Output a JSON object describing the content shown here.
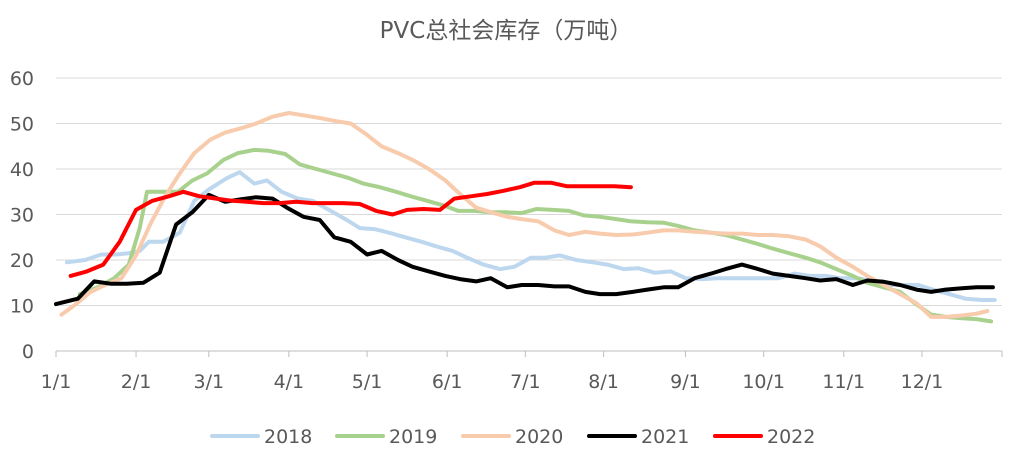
{
  "chart_data": {
    "type": "line",
    "title": "PVC总社会库存（万吨）",
    "xlabel": "",
    "ylabel": "",
    "ylim": [
      0,
      60
    ],
    "y_ticks": [
      0,
      10,
      20,
      30,
      40,
      50,
      60
    ],
    "x_unit": "week",
    "xlim": [
      0,
      52
    ],
    "x_ticks": [
      {
        "label": "1/1",
        "x": 0
      },
      {
        "label": "2/1",
        "x": 4.4
      },
      {
        "label": "3/1",
        "x": 8.4
      },
      {
        "label": "4/1",
        "x": 12.8
      },
      {
        "label": "5/1",
        "x": 17.1
      },
      {
        "label": "6/1",
        "x": 21.5
      },
      {
        "label": "7/1",
        "x": 25.8
      },
      {
        "label": "8/1",
        "x": 30.1
      },
      {
        "label": "9/1",
        "x": 34.6
      },
      {
        "label": "10/1",
        "x": 38.9
      },
      {
        "label": "11/1",
        "x": 43.3
      },
      {
        "label": "12/1",
        "x": 47.6
      }
    ],
    "grid": "horizontal",
    "legend_position": "bottom",
    "series": [
      {
        "name": "2018",
        "color": "#BDD7EE",
        "points": [
          [
            0.6,
            19.5
          ],
          [
            1.6,
            20
          ],
          [
            2.5,
            21.2
          ],
          [
            3.3,
            21.2
          ],
          [
            4.0,
            21.5
          ],
          [
            4.6,
            22
          ],
          [
            5.1,
            24
          ],
          [
            5.9,
            24
          ],
          [
            6.8,
            26
          ],
          [
            7.6,
            33
          ],
          [
            8.4,
            35.5
          ],
          [
            9.4,
            38
          ],
          [
            10.1,
            39.3
          ],
          [
            10.9,
            36.8
          ],
          [
            11.6,
            37.5
          ],
          [
            12.4,
            35
          ],
          [
            13.3,
            33.5
          ],
          [
            14.1,
            33
          ],
          [
            15.0,
            31
          ],
          [
            15.9,
            29
          ],
          [
            16.7,
            27
          ],
          [
            17.5,
            26.8
          ],
          [
            18.3,
            26
          ],
          [
            19.2,
            25
          ],
          [
            20.1,
            24
          ],
          [
            20.9,
            23
          ],
          [
            21.8,
            22
          ],
          [
            22.6,
            20.5
          ],
          [
            23.5,
            19
          ],
          [
            24.4,
            18
          ],
          [
            25.2,
            18.5
          ],
          [
            26.1,
            20.5
          ],
          [
            26.9,
            20.5
          ],
          [
            27.7,
            21
          ],
          [
            28.6,
            20
          ],
          [
            29.5,
            19.5
          ],
          [
            30.3,
            19
          ],
          [
            31.2,
            18
          ],
          [
            32.0,
            18.2
          ],
          [
            32.9,
            17.2
          ],
          [
            33.8,
            17.5
          ],
          [
            34.6,
            16
          ],
          [
            35.5,
            15.8
          ],
          [
            36.4,
            16
          ],
          [
            37.3,
            16
          ],
          [
            38.1,
            16
          ],
          [
            38.9,
            16
          ],
          [
            39.7,
            16
          ],
          [
            40.6,
            17
          ],
          [
            41.4,
            16.5
          ],
          [
            42.3,
            16.5
          ],
          [
            43.1,
            16
          ],
          [
            44.0,
            16
          ],
          [
            44.8,
            15.5
          ],
          [
            45.7,
            14.5
          ],
          [
            46.5,
            14.5
          ],
          [
            47.4,
            14.5
          ],
          [
            48.2,
            13.5
          ],
          [
            49.1,
            12.5
          ],
          [
            50.0,
            11.5
          ],
          [
            50.9,
            11.2
          ],
          [
            51.6,
            11.2
          ]
        ]
      },
      {
        "name": "2019",
        "color": "#A9D18E",
        "points": [
          [
            1.3,
            12.5
          ],
          [
            2.3,
            14
          ],
          [
            3.2,
            16
          ],
          [
            4.0,
            19
          ],
          [
            4.6,
            27
          ],
          [
            5.0,
            35
          ],
          [
            5.8,
            35
          ],
          [
            6.7,
            35
          ],
          [
            7.5,
            37.5
          ],
          [
            8.3,
            39
          ],
          [
            9.2,
            42
          ],
          [
            10.0,
            43.5
          ],
          [
            10.9,
            44.2
          ],
          [
            11.7,
            44
          ],
          [
            12.6,
            43.3
          ],
          [
            13.4,
            41
          ],
          [
            14.3,
            40
          ],
          [
            15.2,
            39
          ],
          [
            16.1,
            38
          ],
          [
            16.9,
            36.8
          ],
          [
            17.8,
            36
          ],
          [
            18.7,
            35
          ],
          [
            19.5,
            34
          ],
          [
            20.4,
            33
          ],
          [
            21.3,
            32
          ],
          [
            22.1,
            30.8
          ],
          [
            23.0,
            30.8
          ],
          [
            23.9,
            30.5
          ],
          [
            24.7,
            30.5
          ],
          [
            25.6,
            30.3
          ],
          [
            26.4,
            31.2
          ],
          [
            27.3,
            31
          ],
          [
            28.2,
            30.8
          ],
          [
            29.0,
            29.8
          ],
          [
            29.9,
            29.5
          ],
          [
            30.8,
            29
          ],
          [
            31.6,
            28.5
          ],
          [
            32.5,
            28.3
          ],
          [
            33.4,
            28.2
          ],
          [
            34.2,
            27.5
          ],
          [
            35.1,
            26.5
          ],
          [
            36.0,
            26
          ],
          [
            36.8,
            25.5
          ],
          [
            37.7,
            24.5
          ],
          [
            38.6,
            23.5
          ],
          [
            39.4,
            22.5
          ],
          [
            40.3,
            21.5
          ],
          [
            41.2,
            20.5
          ],
          [
            42.0,
            19.5
          ],
          [
            42.9,
            18
          ],
          [
            43.8,
            16.5
          ],
          [
            44.6,
            15
          ],
          [
            45.5,
            14
          ],
          [
            46.4,
            13
          ],
          [
            47.2,
            10.5
          ],
          [
            48.1,
            8
          ],
          [
            48.9,
            7.5
          ],
          [
            49.8,
            7.2
          ],
          [
            50.6,
            7
          ],
          [
            51.4,
            6.5
          ]
        ]
      },
      {
        "name": "2020",
        "color": "#F8CBAD",
        "points": [
          [
            0.3,
            8
          ],
          [
            1.0,
            10
          ],
          [
            1.9,
            13
          ],
          [
            2.7,
            14.5
          ],
          [
            3.6,
            16
          ],
          [
            4.4,
            21
          ],
          [
            5.2,
            28
          ],
          [
            6.0,
            34
          ],
          [
            6.8,
            39
          ],
          [
            7.6,
            43.5
          ],
          [
            8.5,
            46.5
          ],
          [
            9.3,
            48
          ],
          [
            10.2,
            49
          ],
          [
            11.0,
            50
          ],
          [
            11.9,
            51.5
          ],
          [
            12.8,
            52.3
          ],
          [
            13.6,
            51.8
          ],
          [
            14.5,
            51.2
          ],
          [
            15.4,
            50.5
          ],
          [
            16.2,
            50
          ],
          [
            17.1,
            47.5
          ],
          [
            17.9,
            45
          ],
          [
            18.8,
            43.5
          ],
          [
            19.6,
            42
          ],
          [
            20.5,
            40
          ],
          [
            21.4,
            37.5
          ],
          [
            22.2,
            34.5
          ],
          [
            23.1,
            31.5
          ],
          [
            23.9,
            30.5
          ],
          [
            24.8,
            29.5
          ],
          [
            25.6,
            29
          ],
          [
            26.5,
            28.5
          ],
          [
            27.4,
            26.5
          ],
          [
            28.2,
            25.5
          ],
          [
            29.1,
            26.2
          ],
          [
            29.9,
            25.8
          ],
          [
            30.8,
            25.5
          ],
          [
            31.7,
            25.6
          ],
          [
            32.5,
            26
          ],
          [
            33.4,
            26.5
          ],
          [
            34.2,
            26.5
          ],
          [
            35.1,
            26.2
          ],
          [
            36.0,
            26
          ],
          [
            36.8,
            25.8
          ],
          [
            37.7,
            25.8
          ],
          [
            38.6,
            25.5
          ],
          [
            39.4,
            25.5
          ],
          [
            40.3,
            25.2
          ],
          [
            41.2,
            24.5
          ],
          [
            42.0,
            23
          ],
          [
            42.9,
            20.5
          ],
          [
            43.8,
            18.5
          ],
          [
            44.6,
            16.5
          ],
          [
            45.5,
            14.5
          ],
          [
            46.4,
            12.5
          ],
          [
            47.3,
            10.5
          ],
          [
            48.1,
            7.5
          ],
          [
            48.9,
            7.5
          ],
          [
            49.8,
            7.8
          ],
          [
            50.6,
            8.2
          ],
          [
            51.2,
            8.8
          ]
        ]
      },
      {
        "name": "2021",
        "color": "#000000",
        "points": [
          [
            0,
            10.3
          ],
          [
            1.2,
            11.5
          ],
          [
            2.1,
            15.3
          ],
          [
            3.0,
            14.8
          ],
          [
            3.9,
            14.8
          ],
          [
            4.8,
            15
          ],
          [
            5.7,
            17.2
          ],
          [
            6.6,
            27.8
          ],
          [
            7.5,
            30.5
          ],
          [
            8.4,
            34.3
          ],
          [
            9.3,
            32.8
          ],
          [
            10.1,
            33.3
          ],
          [
            11.0,
            33.8
          ],
          [
            11.9,
            33.5
          ],
          [
            12.7,
            31.5
          ],
          [
            13.6,
            29.5
          ],
          [
            14.5,
            28.8
          ],
          [
            15.3,
            25
          ],
          [
            16.2,
            24
          ],
          [
            17.1,
            21.2
          ],
          [
            17.9,
            22
          ],
          [
            18.8,
            20
          ],
          [
            19.6,
            18.5
          ],
          [
            20.5,
            17.5
          ],
          [
            21.4,
            16.5
          ],
          [
            22.2,
            15.8
          ],
          [
            23.1,
            15.3
          ],
          [
            23.9,
            16
          ],
          [
            24.8,
            14
          ],
          [
            25.6,
            14.5
          ],
          [
            26.5,
            14.5
          ],
          [
            27.4,
            14.2
          ],
          [
            28.2,
            14.2
          ],
          [
            29.1,
            13
          ],
          [
            29.9,
            12.5
          ],
          [
            30.8,
            12.5
          ],
          [
            31.7,
            13
          ],
          [
            32.5,
            13.5
          ],
          [
            33.4,
            14
          ],
          [
            34.2,
            14
          ],
          [
            35.1,
            16
          ],
          [
            36.0,
            17
          ],
          [
            36.8,
            18
          ],
          [
            37.7,
            19
          ],
          [
            38.6,
            18
          ],
          [
            39.4,
            17
          ],
          [
            40.3,
            16.5
          ],
          [
            41.2,
            16
          ],
          [
            42.0,
            15.5
          ],
          [
            42.9,
            15.8
          ],
          [
            43.8,
            14.5
          ],
          [
            44.6,
            15.5
          ],
          [
            45.5,
            15.2
          ],
          [
            46.4,
            14.5
          ],
          [
            47.3,
            13.5
          ],
          [
            48.1,
            13
          ],
          [
            48.9,
            13.5
          ],
          [
            49.8,
            13.8
          ],
          [
            50.6,
            14
          ],
          [
            51.5,
            14
          ]
        ]
      },
      {
        "name": "2022",
        "color": "#FF0000",
        "points": [
          [
            0.8,
            16.5
          ],
          [
            1.7,
            17.5
          ],
          [
            2.6,
            19
          ],
          [
            3.5,
            24
          ],
          [
            4.4,
            31
          ],
          [
            5.3,
            33
          ],
          [
            6.2,
            34
          ],
          [
            7.0,
            35
          ],
          [
            7.9,
            34
          ],
          [
            8.8,
            33.5
          ],
          [
            9.7,
            33
          ],
          [
            10.5,
            32.8
          ],
          [
            11.4,
            32.5
          ],
          [
            12.3,
            32.5
          ],
          [
            13.2,
            32.8
          ],
          [
            14.1,
            32.5
          ],
          [
            14.9,
            32.5
          ],
          [
            15.8,
            32.5
          ],
          [
            16.7,
            32.3
          ],
          [
            17.6,
            30.8
          ],
          [
            18.5,
            30
          ],
          [
            19.3,
            31
          ],
          [
            20.2,
            31.2
          ],
          [
            21.1,
            31
          ],
          [
            21.9,
            33.5
          ],
          [
            22.8,
            34
          ],
          [
            23.7,
            34.5
          ],
          [
            24.6,
            35.2
          ],
          [
            25.5,
            36
          ],
          [
            26.3,
            37
          ],
          [
            27.2,
            37
          ],
          [
            28.1,
            36.2
          ],
          [
            29.0,
            36.2
          ],
          [
            29.8,
            36.2
          ],
          [
            30.7,
            36.2
          ],
          [
            31.6,
            36
          ]
        ]
      }
    ]
  }
}
